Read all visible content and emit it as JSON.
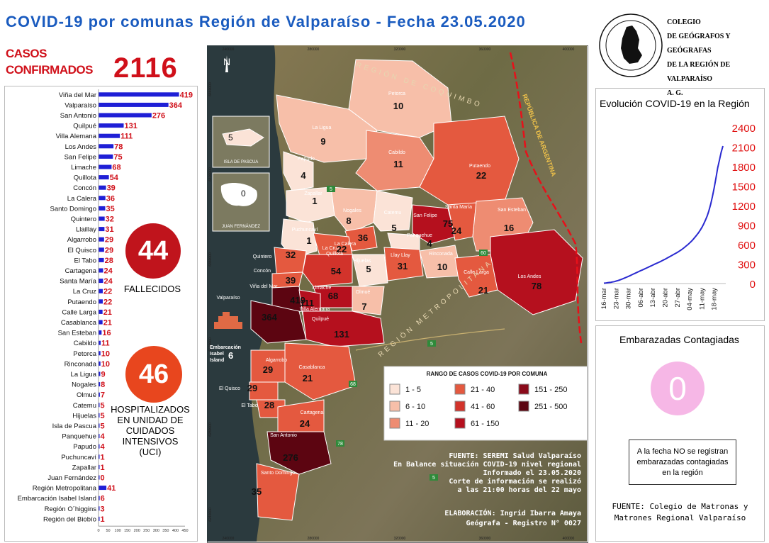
{
  "title": "COVID-19 por comunas Región de Valparaíso - Fecha 23.05.2020",
  "confirmed": {
    "label_line1": "CASOS",
    "label_line2": "CONFIRMADOS",
    "value": "2116"
  },
  "deaths": {
    "value": "44",
    "label": "FALLECIDOS"
  },
  "icu": {
    "value": "46",
    "label_lines": [
      "HOSPITALIZADOS",
      "EN UNIDAD DE",
      "CUIDADOS",
      "INTENSIVOS",
      "(UCI)"
    ]
  },
  "college": {
    "lines": [
      "COLEGIO",
      "DE GEÓGRAFOS Y GEÓGRAFAS",
      "DE LA REGIÓN DE VALPARAÍSO",
      "A. G."
    ],
    "seal_text": "COLEGIO DE GEÓGRAFOS · REGIÓN DE VALPARAÍSO"
  },
  "chart_data": [
    {
      "type": "bar",
      "orientation": "horizontal",
      "bar_color": "#1f1fd6",
      "label_color": "#d0101a",
      "categories": [
        "Viña del Mar",
        "Valparaíso",
        "San Antonio",
        "Quilpué",
        "Villa Alemana",
        "Los Andes",
        "San Felipe",
        "Limache",
        "Quillota",
        "Concón",
        "La Calera",
        "Santo Domingo",
        "Quintero",
        "Llaillay",
        "Algarrobo",
        "El Quisco",
        "El Tabo",
        "Cartagena",
        "Santa María",
        "La Cruz",
        "Putaendo",
        "Calle Larga",
        "Casablanca",
        "San Esteban",
        "Cabildo",
        "Petorca",
        "Rinconada",
        "La Ligua",
        "Nogales",
        "Olmué",
        "Catemu",
        "Hijuelas",
        "Isla de Pascua",
        "Panquehue",
        "Papudo",
        "Puchuncaví",
        "Zapallar",
        "Juan Fernández",
        "Región Metropolitana",
        "Embarcación Isabel Island",
        "Región O´higgins",
        "Región del Biobío"
      ],
      "values": [
        419,
        364,
        276,
        131,
        111,
        78,
        75,
        68,
        54,
        39,
        36,
        35,
        32,
        31,
        29,
        29,
        28,
        24,
        24,
        22,
        22,
        21,
        21,
        16,
        11,
        10,
        10,
        9,
        8,
        7,
        5,
        5,
        5,
        4,
        4,
        1,
        1,
        0,
        41,
        6,
        3,
        1
      ],
      "xlim": [
        0,
        450
      ],
      "xticks": [
        0,
        50,
        100,
        150,
        200,
        250,
        300,
        350,
        400,
        450
      ]
    },
    {
      "type": "line",
      "title": "Evolución COVID-19 en la Región",
      "line_color": "#2a2ad0",
      "ytick_color": "#e01010",
      "x": [
        "16-mar",
        "17-mar",
        "18-mar",
        "19-mar",
        "20-mar",
        "21-mar",
        "22-mar",
        "23-mar",
        "24-mar",
        "25-mar",
        "26-mar",
        "27-mar",
        "28-mar",
        "29-mar",
        "30-mar",
        "31-mar",
        "01-abr",
        "02-abr",
        "03-abr",
        "04-abr",
        "05-abr",
        "06-abr",
        "07-abr",
        "08-abr",
        "09-abr",
        "10-abr",
        "11-abr",
        "12-abr",
        "13-abr",
        "14-abr",
        "15-abr",
        "16-abr",
        "17-abr",
        "18-abr",
        "19-abr",
        "20-abr",
        "21-abr",
        "22-abr",
        "23-abr",
        "24-abr",
        "25-abr",
        "26-abr",
        "27-abr",
        "28-abr",
        "29-abr",
        "30-abr",
        "01-may",
        "02-may",
        "03-may",
        "04-may",
        "05-may",
        "06-may",
        "07-may",
        "08-may",
        "09-may",
        "10-may",
        "11-may",
        "12-may",
        "13-may",
        "14-may",
        "15-may",
        "16-may",
        "17-may",
        "18-may",
        "19-may",
        "20-may",
        "21-may",
        "22-may",
        "23-may"
      ],
      "y": [
        5,
        8,
        12,
        16,
        20,
        25,
        30,
        38,
        46,
        55,
        64,
        75,
        86,
        98,
        110,
        122,
        135,
        148,
        160,
        172,
        185,
        198,
        210,
        222,
        235,
        247,
        260,
        272,
        285,
        298,
        310,
        322,
        335,
        348,
        362,
        375,
        390,
        405,
        420,
        435,
        450,
        465,
        480,
        497,
        515,
        535,
        555,
        578,
        600,
        625,
        650,
        680,
        712,
        745,
        780,
        820,
        865,
        915,
        975,
        1040,
        1120,
        1220,
        1340,
        1470,
        1620,
        1780,
        1900,
        2020,
        2116
      ],
      "xticks": [
        "16-mar",
        "23-mar",
        "30-mar",
        "06-abr",
        "13-abr",
        "20-abr",
        "27-abr",
        "04-may",
        "11-may",
        "18-may"
      ],
      "yticks": [
        0,
        300,
        600,
        900,
        1200,
        1500,
        1800,
        2100,
        2400
      ],
      "ylim": [
        0,
        2400
      ]
    }
  ],
  "map": {
    "regions": {
      "coquimbo": "REGIÓN DE COQUIMBO",
      "argentina": "REPÚBLICA DE ARGENTINA",
      "metropolitana": "REGIÓN METROPOLITANA"
    },
    "north": "N",
    "insets": [
      {
        "label": "ISLA DE PASCUA",
        "value": "5"
      },
      {
        "label": "JUAN FERNÁNDEZ",
        "value": "0"
      }
    ],
    "grid_top": [
      "240000",
      "280000",
      "320000",
      "360000",
      "400000"
    ],
    "grid_bottom": [
      "240000",
      "280000",
      "320000",
      "360000",
      "400000"
    ],
    "grid_left": [
      "6440000",
      "6400000",
      "6360000",
      "6320000",
      "6280000",
      "6240000"
    ],
    "roads": [
      "5",
      "5",
      "60",
      "68",
      "78",
      "5"
    ],
    "ship": {
      "label_lines": [
        "Embarcación",
        "Isabel",
        "Island"
      ],
      "value": "6"
    },
    "comunas": [
      {
        "name": "Petorca",
        "value": "10"
      },
      {
        "name": "La Ligua",
        "value": "9"
      },
      {
        "name": "Cabildo",
        "value": "11"
      },
      {
        "name": "Papudo",
        "value": "4"
      },
      {
        "name": "Putaendo",
        "value": "22"
      },
      {
        "name": "Zapallar",
        "value": "1"
      },
      {
        "name": "Nogales",
        "value": "8"
      },
      {
        "name": "Catemu",
        "value": "5"
      },
      {
        "name": "San Felipe",
        "value": "75"
      },
      {
        "name": "Santa María",
        "value": "24"
      },
      {
        "name": "San Esteban",
        "value": "16"
      },
      {
        "name": "Puchuncaví",
        "value": "1"
      },
      {
        "name": "La Calera",
        "value": "36"
      },
      {
        "name": "La Cruz",
        "value": "22"
      },
      {
        "name": "Panquehue",
        "value": "4"
      },
      {
        "name": "Quintero",
        "value": "32"
      },
      {
        "name": "Quillota",
        "value": "54"
      },
      {
        "name": "Hijuelas",
        "value": "5"
      },
      {
        "name": "Llay Llay",
        "value": "31"
      },
      {
        "name": "Rinconada",
        "value": "10"
      },
      {
        "name": "Concón",
        "value": "39"
      },
      {
        "name": "Calle Larga",
        "value": "21"
      },
      {
        "name": "Los Andes",
        "value": "78"
      },
      {
        "name": "Viña del Mar",
        "value": "419"
      },
      {
        "name": "Limache",
        "value": "68"
      },
      {
        "name": "Villa Alemana",
        "value": "111"
      },
      {
        "name": "Olmué",
        "value": "7"
      },
      {
        "name": "Valparaíso",
        "value": "364"
      },
      {
        "name": "Quilpué",
        "value": "131"
      },
      {
        "name": "Algarrobo",
        "value": "29"
      },
      {
        "name": "Casablanca",
        "value": "21"
      },
      {
        "name": "El Quisco",
        "value": "29"
      },
      {
        "name": "El Tabo",
        "value": "28"
      },
      {
        "name": "Cartagena",
        "value": "24"
      },
      {
        "name": "San Antonio",
        "value": "276"
      },
      {
        "name": "Santo Domingo",
        "value": "35"
      }
    ],
    "legend": {
      "title": "RANGO DE CASOS COVID-19 POR COMUNA",
      "items": [
        {
          "label": "1 - 5",
          "color": "#fbe3d7"
        },
        {
          "label": "6 - 10",
          "color": "#f7bfa9"
        },
        {
          "label": "11 - 20",
          "color": "#ee8c72"
        },
        {
          "label": "21 - 40",
          "color": "#e4593f"
        },
        {
          "label": "41 - 60",
          "color": "#d2332b"
        },
        {
          "label": "61 - 150",
          "color": "#b5101e"
        },
        {
          "label": "151 - 250",
          "color": "#8a0a1a"
        },
        {
          "label": "251 - 500",
          "color": "#5c0511"
        }
      ]
    },
    "source_lines": [
      "FUENTE: SEREMI Salud Valparaíso",
      "En Balance situación COVID-19 nivel regional",
      "Informado el 23.05.2020",
      "Corte de información se realizó",
      "a las 21:00 horas del 22 mayo"
    ],
    "author_lines": [
      "ELABORACIÓN: Ingrid Ibarra Amaya",
      "Geógrafa - Registro N° 0027"
    ]
  },
  "pregnant": {
    "title": "Embarazadas Contagiadas",
    "value": "0",
    "note_lines": [
      "A la fecha NO se registran",
      "embarazadas contagiadas",
      "en la región"
    ],
    "source_lines": [
      "FUENTE: Colegio de Matronas y",
      "Matrones Regional Valparaíso"
    ]
  }
}
